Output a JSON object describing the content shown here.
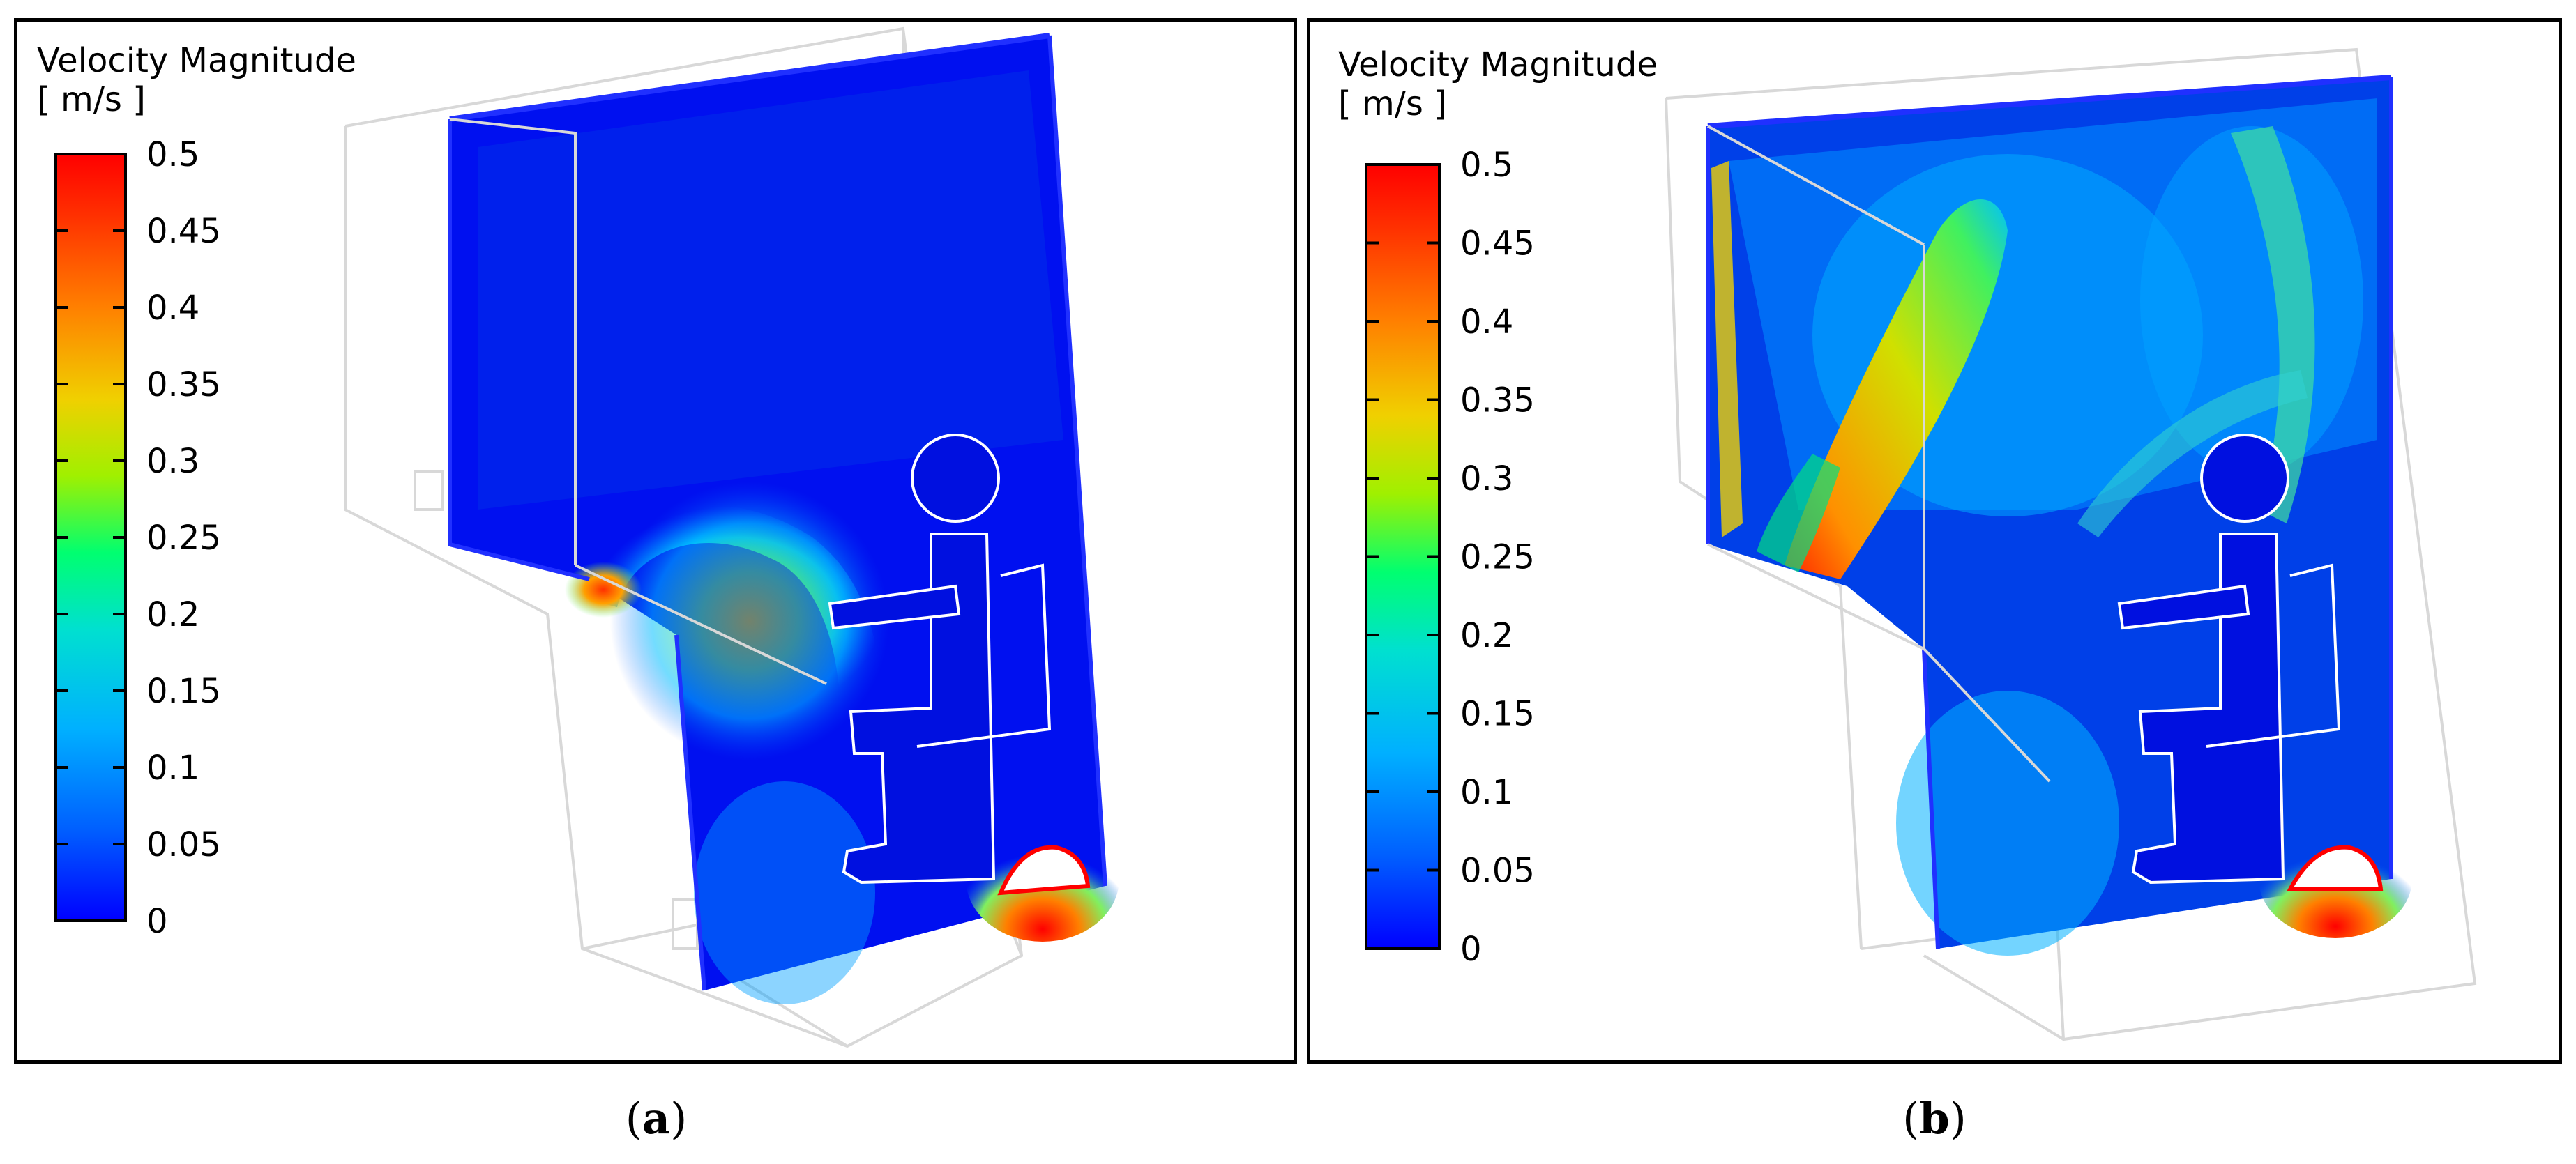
{
  "panels": [
    {
      "id": "a",
      "caption": "a",
      "legend": {
        "title_line1": "Velocity Magnitude",
        "title_line2": "[ m/s ]",
        "ticks": [
          "0.5",
          "0.45",
          "0.4",
          "0.35",
          "0.3",
          "0.25",
          "0.2",
          "0.15",
          "0.1",
          "0.05",
          "0"
        ]
      }
    },
    {
      "id": "b",
      "caption": "b",
      "legend": {
        "title_line1": "Velocity Magnitude",
        "title_line2": "[ m/s ]",
        "ticks": [
          "0.5",
          "0.45",
          "0.4",
          "0.35",
          "0.3",
          "0.25",
          "0.2",
          "0.15",
          "0.1",
          "0.05",
          "0"
        ]
      }
    }
  ],
  "colormap": {
    "min": 0,
    "max": 0.5,
    "stops": [
      "#0000ff",
      "#0080ff",
      "#00d8ff",
      "#00ff90",
      "#c8f000",
      "#ffc000",
      "#ff6000",
      "#ff0000"
    ]
  }
}
